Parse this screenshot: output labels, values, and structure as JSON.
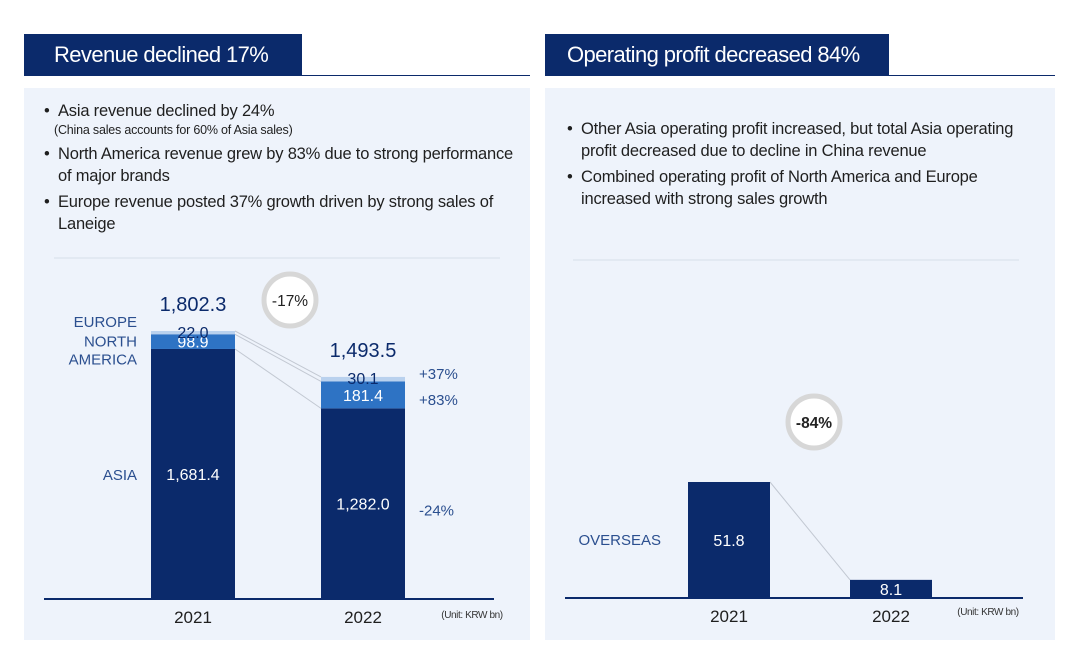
{
  "left": {
    "title": "Revenue declined 17%",
    "bullets": [
      {
        "text": "Asia revenue declined by 24%",
        "note": "(China sales accounts for 60% of Asia sales)"
      },
      {
        "text": "North America revenue grew by 83% due to strong performance of major brands"
      },
      {
        "text": "Europe revenue posted 37% growth driven by strong sales of Laneige"
      }
    ],
    "badge": "-17%",
    "unit": "(Unit: KRW bn)"
  },
  "right": {
    "title": "Operating profit decreased 84%",
    "bullets": [
      {
        "text": "Other Asia operating profit increased, but total Asia operating profit decreased due to decline in China revenue"
      },
      {
        "text": "Combined operating profit of North America and Europe increased with strong sales growth"
      }
    ],
    "badge": "-84%",
    "unit": "(Unit: KRW bn)"
  },
  "chart_data": [
    {
      "type": "bar",
      "stacked": true,
      "categories": [
        "2021",
        "2022"
      ],
      "totals": [
        "1,802.3",
        "1,493.5"
      ],
      "series": [
        {
          "name": "ASIA",
          "values": [
            1681.4,
            1282.0
          ],
          "labels": [
            "1,681.4",
            "1,282.0"
          ],
          "change": "-24%",
          "color": "#0b2a6b"
        },
        {
          "name": "NORTH AMERICA",
          "display_name": [
            "NORTH",
            "AMERICA"
          ],
          "values": [
            98.9,
            181.4
          ],
          "labels": [
            "98.9",
            "181.4"
          ],
          "change": "+83%",
          "color": "#2e73c4"
        },
        {
          "name": "EUROPE",
          "display_name": [
            "EUROPE"
          ],
          "values": [
            22.0,
            30.1
          ],
          "labels": [
            "22.0",
            "30.1"
          ],
          "change": "+37%",
          "color": "#b9d1ee"
        }
      ],
      "ylim": [
        0,
        2200
      ]
    },
    {
      "type": "bar",
      "categories": [
        "2021",
        "2022"
      ],
      "series": [
        {
          "name": "OVERSEAS",
          "values": [
            51.8,
            8.1
          ],
          "labels": [
            "51.8",
            "8.1"
          ],
          "color": "#0b2a6b"
        }
      ],
      "ylim": [
        0,
        88
      ]
    }
  ]
}
